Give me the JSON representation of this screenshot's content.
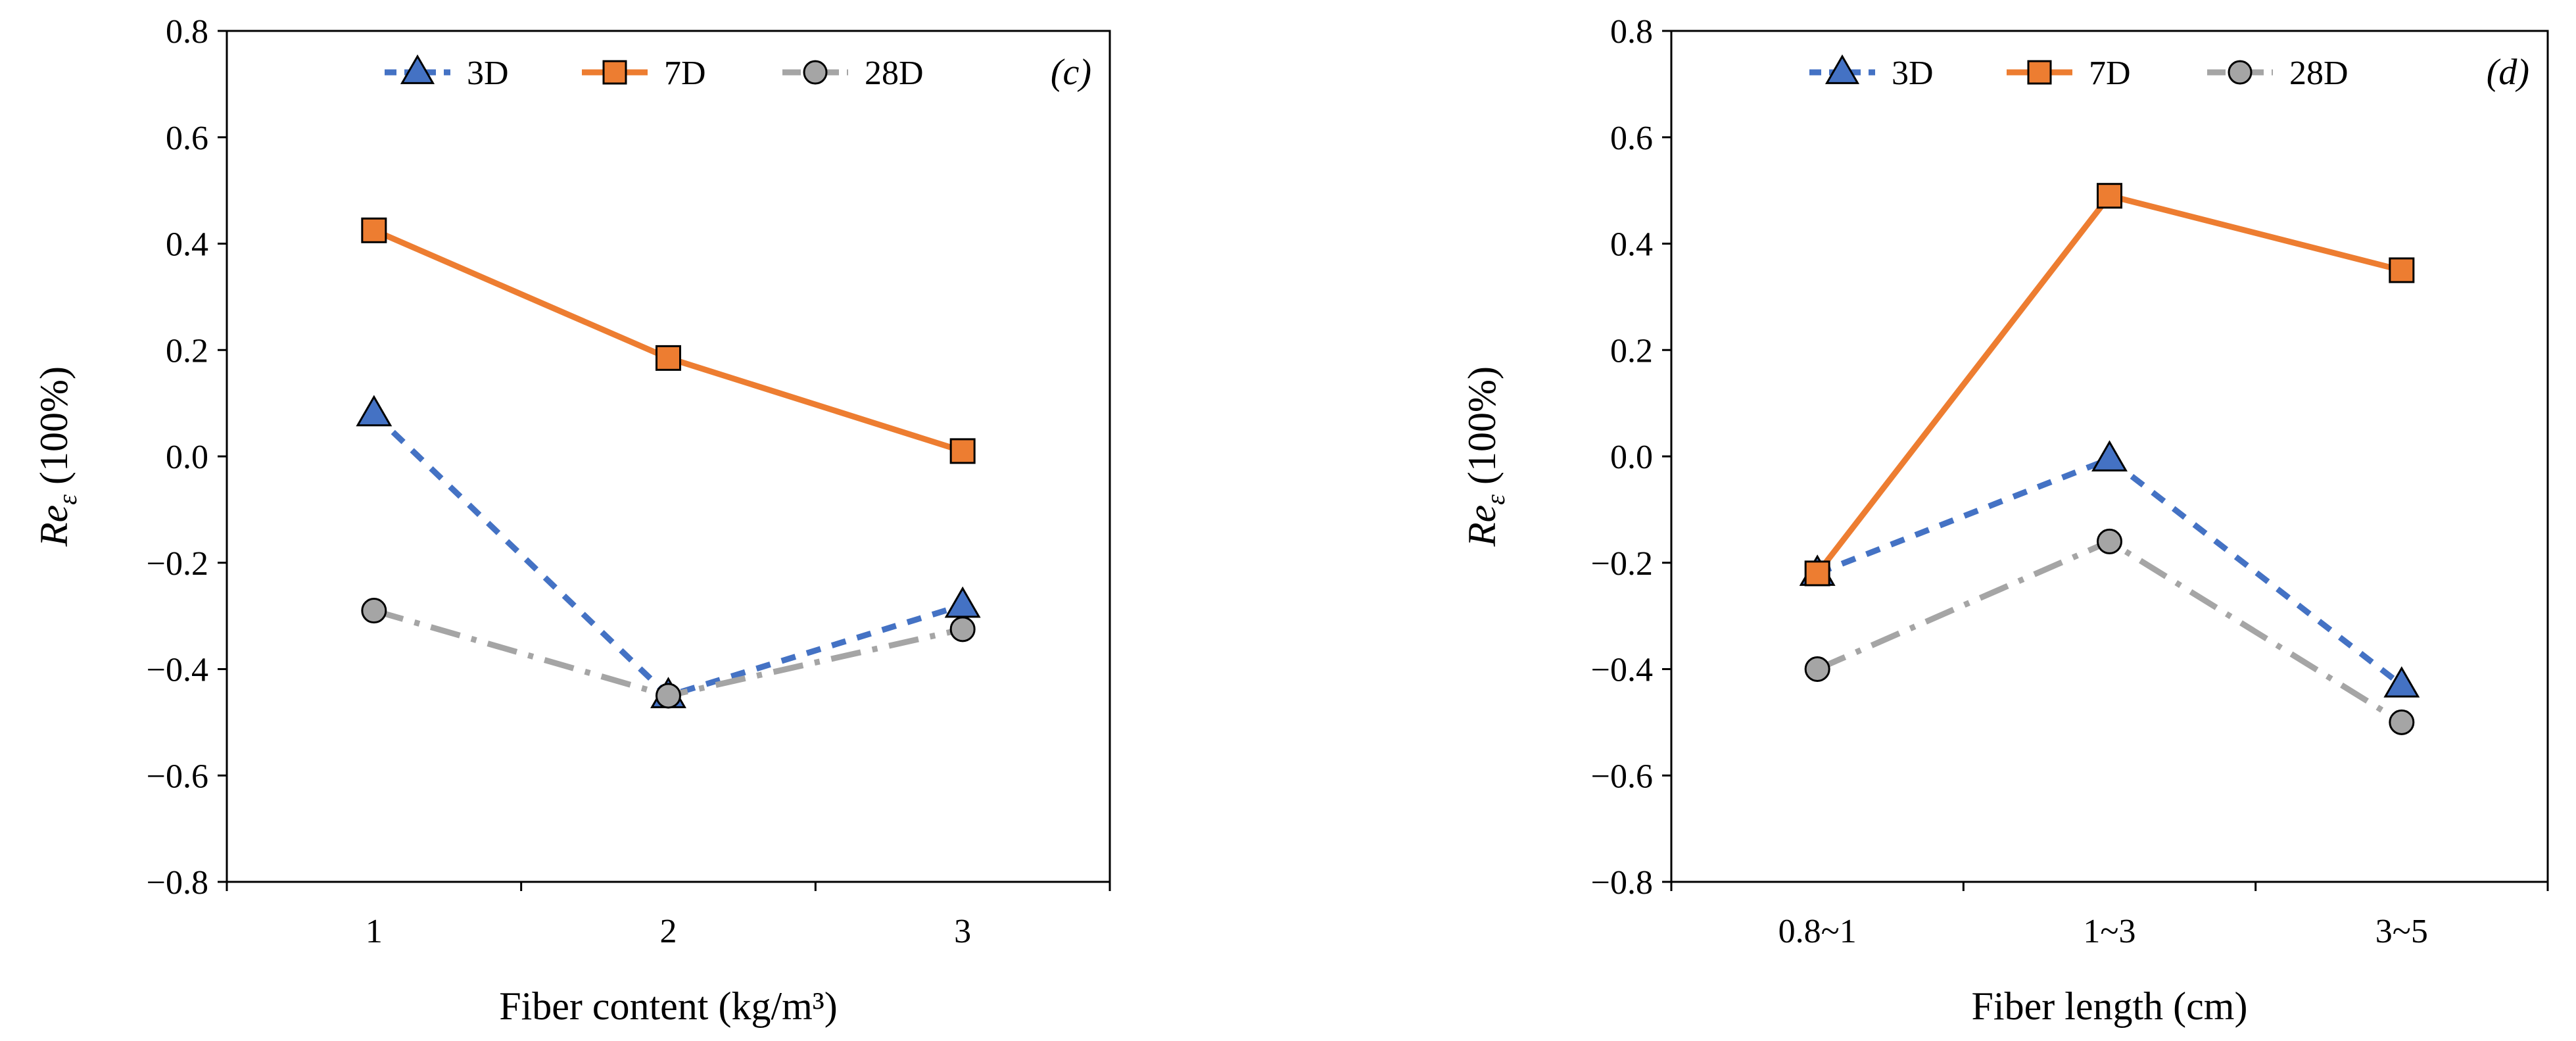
{
  "chart_data": [
    {
      "type": "line",
      "panel_label": "(c)",
      "xlabel": "Fiber content (kg/m³)",
      "ylabel_main": "Re",
      "ylabel_sub": "ε",
      "ylabel_unit": " (100%)",
      "ylim": [
        -0.8,
        0.8
      ],
      "yticks": [
        -0.8,
        -0.6,
        -0.4,
        -0.2,
        0.0,
        0.2,
        0.4,
        0.6,
        0.8
      ],
      "ytick_labels": [
        "−0.8",
        "−0.6",
        "−0.4",
        "−0.2",
        "0.0",
        "0.2",
        "0.4",
        "0.6",
        "0.8"
      ],
      "categories": [
        "1",
        "2",
        "3"
      ],
      "legend_position": "top-center",
      "series": [
        {
          "name": "3D",
          "values": [
            0.08,
            -0.45,
            -0.28
          ]
        },
        {
          "name": "7D",
          "values": [
            0.425,
            0.185,
            0.01
          ]
        },
        {
          "name": "28D",
          "values": [
            -0.29,
            -0.45,
            -0.325
          ]
        }
      ]
    },
    {
      "type": "line",
      "panel_label": "(d)",
      "xlabel": "Fiber length (cm)",
      "ylabel_main": "Re",
      "ylabel_sub": "ε",
      "ylabel_unit": " (100%)",
      "ylim": [
        -0.8,
        0.8
      ],
      "yticks": [
        -0.8,
        -0.6,
        -0.4,
        -0.2,
        0.0,
        0.2,
        0.4,
        0.6,
        0.8
      ],
      "ytick_labels": [
        "−0.8",
        "−0.6",
        "−0.4",
        "−0.2",
        "0.0",
        "0.2",
        "0.4",
        "0.6",
        "0.8"
      ],
      "categories": [
        "0.8~1",
        "1~3",
        "3~5"
      ],
      "legend_position": "top-center",
      "series": [
        {
          "name": "3D",
          "values": [
            -0.22,
            -0.005,
            -0.43
          ]
        },
        {
          "name": "7D",
          "values": [
            -0.22,
            0.49,
            0.35
          ]
        },
        {
          "name": "28D",
          "values": [
            -0.4,
            -0.16,
            -0.5
          ]
        }
      ]
    }
  ],
  "series_styles": [
    {
      "color": "#4472C4",
      "marker": "triangle"
    },
    {
      "color": "#ED7D31",
      "marker": "square"
    },
    {
      "color": "#A5A5A5",
      "marker": "circle"
    }
  ]
}
